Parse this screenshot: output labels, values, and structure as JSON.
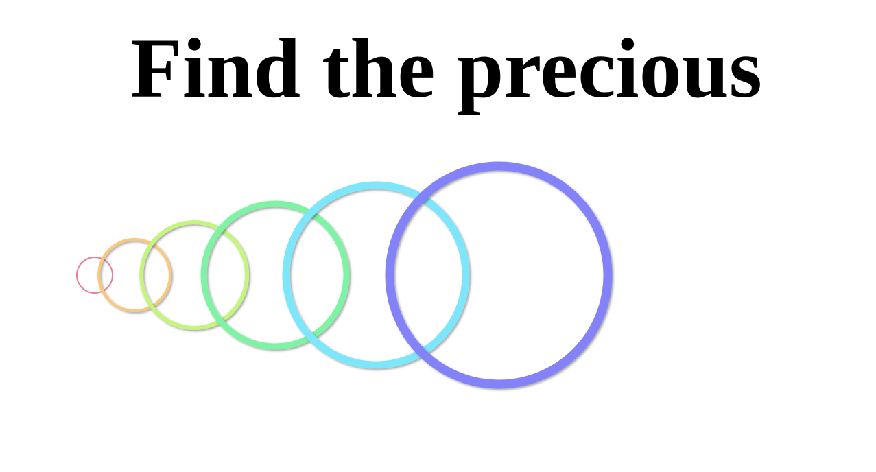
{
  "title": "Find the precious",
  "rings": [
    {
      "name": "ring-red",
      "color": "#f07c90"
    },
    {
      "name": "ring-orange",
      "color": "#fcc878"
    },
    {
      "name": "ring-lime",
      "color": "#c4f57c"
    },
    {
      "name": "ring-green",
      "color": "#7ef3a4"
    },
    {
      "name": "ring-cyan",
      "color": "#7ee6fb"
    },
    {
      "name": "ring-blue",
      "color": "#8482f8"
    }
  ]
}
